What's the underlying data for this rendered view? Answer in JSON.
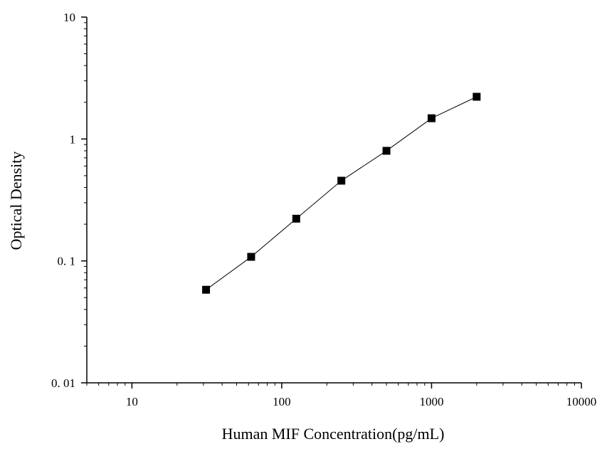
{
  "chart_data": {
    "type": "scatter",
    "title": "",
    "xlabel": "Human MIF Concentration(pg/mL)",
    "ylabel": "Optical Density",
    "x_scale": "log",
    "y_scale": "log",
    "xlim": [
      5,
      10000
    ],
    "ylim": [
      0.01,
      10
    ],
    "x_ticks": [
      {
        "value": 10,
        "label": "10"
      },
      {
        "value": 100,
        "label": "100"
      },
      {
        "value": 1000,
        "label": "1000"
      },
      {
        "value": 10000,
        "label": "10000"
      }
    ],
    "y_ticks": [
      {
        "value": 0.01,
        "label": "0. 01"
      },
      {
        "value": 0.1,
        "label": "0. 1"
      },
      {
        "value": 1,
        "label": "1"
      },
      {
        "value": 10,
        "label": "10"
      }
    ],
    "grid": false,
    "legend": "none",
    "marker": "square",
    "line": "connected",
    "series": [
      {
        "x": [
          31.25,
          62.5,
          125,
          250,
          500,
          1000,
          2000
        ],
        "y": [
          0.058,
          0.108,
          0.222,
          0.455,
          0.8,
          1.48,
          2.22
        ]
      }
    ]
  }
}
